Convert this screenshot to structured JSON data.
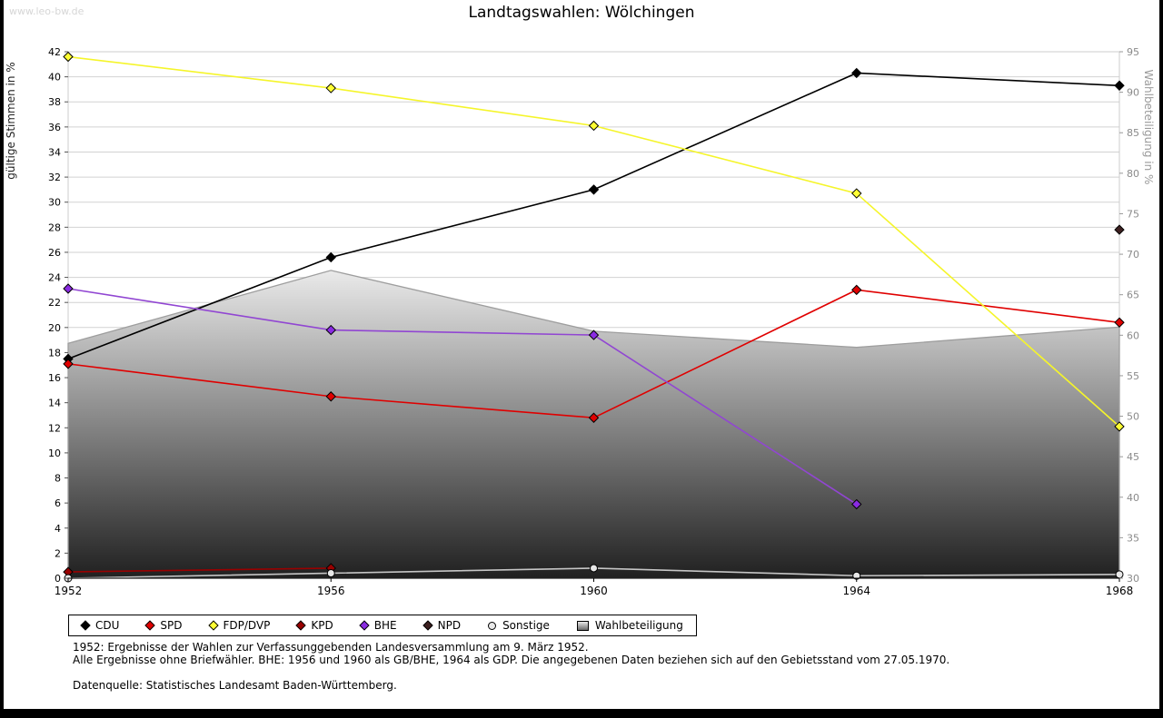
{
  "page": {
    "watermark": "www.leo-bw.de",
    "title": "Landtagswahlen: Wölchingen"
  },
  "chart_data": {
    "type": "line",
    "title": "Landtagswahlen: Wölchingen",
    "x": [
      1952,
      1956,
      1960,
      1964,
      1968
    ],
    "left_axis": {
      "label": "gültige Stimmen in %",
      "min": 0,
      "max": 42,
      "tick_step": 2
    },
    "right_axis": {
      "label": "Wahlbeteiligung in %",
      "min": 30,
      "max": 95,
      "tick_step": 5
    },
    "grid": true,
    "legend_position": "bottom",
    "series": [
      {
        "name": "CDU",
        "color": "#000000",
        "marker": "diamond",
        "marker_fill": "#000000",
        "values": [
          17.5,
          25.6,
          31.0,
          40.3,
          39.3
        ]
      },
      {
        "name": "SPD",
        "color": "#e00000",
        "marker": "diamond",
        "marker_fill": "#e00000",
        "values": [
          17.1,
          14.5,
          12.8,
          23.0,
          20.4
        ]
      },
      {
        "name": "FDP/DVP",
        "color": "#f5f52a",
        "marker": "diamond",
        "marker_fill": "#ffff33",
        "values": [
          41.6,
          39.1,
          36.1,
          30.7,
          12.1
        ]
      },
      {
        "name": "KPD",
        "color": "#990000",
        "marker": "diamond",
        "marker_fill": "#990000",
        "values": [
          0.5,
          0.8,
          null,
          null,
          null
        ]
      },
      {
        "name": "BHE",
        "color": "#9146d2",
        "marker": "diamond",
        "marker_fill": "#8a2be2",
        "values": [
          23.1,
          19.8,
          19.4,
          5.9,
          null
        ]
      },
      {
        "name": "NPD",
        "color": "#3d2020",
        "marker": "diamond",
        "marker_fill": "#3d2020",
        "values": [
          null,
          null,
          null,
          null,
          27.8
        ]
      },
      {
        "name": "Sonstige",
        "color": "#c6c6c6",
        "marker": "circle",
        "marker_fill": "#e8e8e8",
        "values": [
          0.0,
          0.4,
          0.8,
          0.2,
          0.3
        ]
      }
    ],
    "area_series": {
      "name": "Wahlbeteiligung",
      "axis": "right",
      "values": [
        59.0,
        68.0,
        60.5,
        58.5,
        61.0
      ],
      "fill_top": "#eaeaea",
      "fill_bottom": "#202020",
      "stroke": "#9e9e9e"
    }
  },
  "footnotes": {
    "line1": "1952: Ergebnisse der Wahlen zur Verfassunggebenden Landesversammlung am 9. März 1952.",
    "line2": "Alle Ergebnisse ohne Briefwähler. BHE: 1956 und 1960 als GB/BHE, 1964 als GDP. Die angegebenen Daten beziehen sich auf den Gebietsstand vom 27.05.1970.",
    "source": "Datenquelle: Statistisches Landesamt Baden-Württemberg."
  }
}
